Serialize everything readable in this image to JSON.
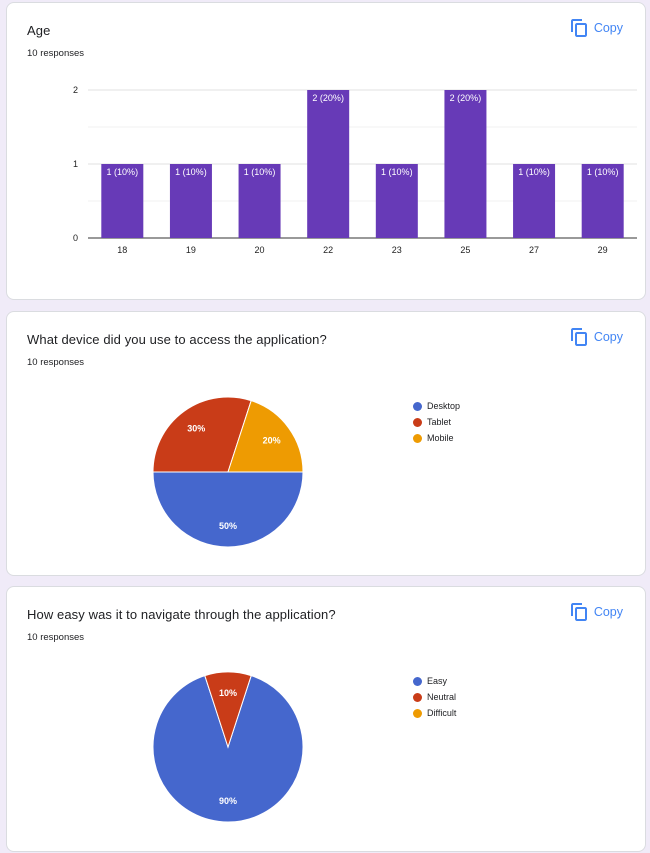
{
  "copy_label": "Copy",
  "cards": [
    {
      "title": "Age",
      "responses": "10 responses",
      "chart_data": {
        "type": "bar",
        "categories": [
          "18",
          "19",
          "20",
          "22",
          "23",
          "25",
          "27",
          "29"
        ],
        "values": [
          1,
          1,
          1,
          2,
          1,
          2,
          1,
          1
        ],
        "data_labels": [
          "1 (10%)",
          "1 (10%)",
          "1 (10%)",
          "2 (20%)",
          "1 (10%)",
          "2 (20%)",
          "1 (10%)",
          "1 (10%)"
        ],
        "yticks": [
          "0",
          "1",
          "2"
        ],
        "ylim": [
          0,
          2
        ],
        "grid": true,
        "color": "#673ab7"
      }
    },
    {
      "title": "What device did you use to access the application?",
      "responses": "10 responses",
      "chart_data": {
        "type": "pie",
        "labels": [
          "Desktop",
          "Tablet",
          "Mobile"
        ],
        "values": [
          50,
          30,
          20
        ],
        "data_labels": [
          "50%",
          "30%",
          "20%"
        ],
        "colors": [
          "#4567cd",
          "#c93c18",
          "#ee9b02"
        ],
        "legend": "right"
      }
    },
    {
      "title": "How easy was it to navigate through the application?",
      "responses": "10 responses",
      "chart_data": {
        "type": "pie",
        "labels": [
          "Easy",
          "Neutral",
          "Difficult"
        ],
        "values": [
          90,
          10,
          0
        ],
        "data_labels": [
          "90%",
          "10%",
          ""
        ],
        "colors": [
          "#4567cd",
          "#c93c18",
          "#ee9b02"
        ],
        "legend": "right"
      }
    }
  ]
}
